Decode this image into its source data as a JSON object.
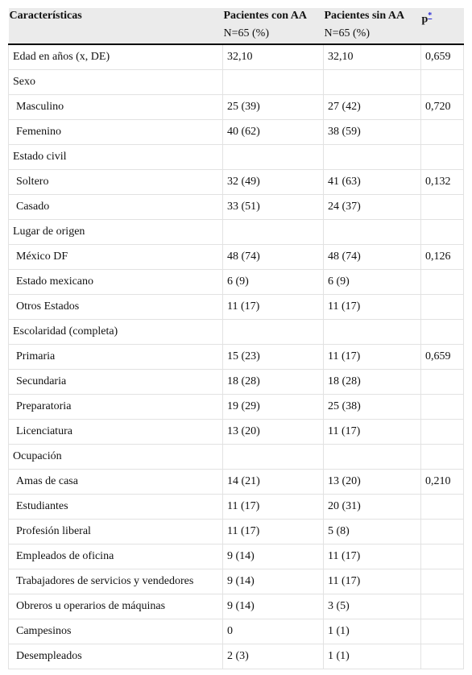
{
  "header": {
    "columns": [
      "Características",
      "Pacientes con AA",
      "Pacientes sin AA",
      "p"
    ],
    "subheaders": [
      null,
      "N=65 (%)",
      "N=65 (%)",
      null
    ],
    "footnote_mark": "*"
  },
  "table": {
    "rows": [
      [
        "Edad en años (x, DE)",
        "32,10",
        "32,10",
        "0,659"
      ]
    ],
    "groups": [
      {
        "title": "Sexo",
        "rows": [
          [
            "Masculino",
            "25 (39)",
            "27 (42)",
            "0,720"
          ],
          [
            "Femenino",
            "40 (62)",
            "38 (59)",
            null
          ]
        ]
      },
      {
        "title": "Estado civil",
        "rows": [
          [
            "Soltero",
            "32 (49)",
            "41 (63)",
            "0,132"
          ],
          [
            "Casado",
            "33 (51)",
            "24 (37)",
            null
          ]
        ]
      },
      {
        "title": "Lugar de origen",
        "rows": [
          [
            "México DF",
            "48 (74)",
            "48 (74)",
            "0,126"
          ],
          [
            "Estado mexicano",
            "6 (9)",
            "6 (9)",
            null
          ],
          [
            "Otros Estados",
            "11 (17)",
            "11 (17)",
            null
          ]
        ]
      },
      {
        "title": "Escolaridad (completa)",
        "rows": [
          [
            "Primaria",
            "15 (23)",
            "11 (17)",
            "0,659"
          ],
          [
            "Secundaria",
            "18 (28)",
            "18 (28)",
            null
          ],
          [
            "Preparatoria",
            "19 (29)",
            "25 (38)",
            null
          ],
          [
            "Licenciatura",
            "13 (20)",
            "11 (17)",
            null
          ]
        ]
      },
      {
        "title": "Ocupación",
        "rows": [
          [
            "Amas de casa",
            "14 (21)",
            "13 (20)",
            "0,210"
          ],
          [
            "Estudiantes",
            "11 (17)",
            "20 (31)",
            null
          ],
          [
            "Profesión liberal",
            "11 (17)",
            "5 (8)",
            null
          ],
          [
            "Empleados de oficina",
            "9 (14)",
            "11 (17)",
            null
          ],
          [
            "Trabajadores de servicios y vendedores",
            "9 (14)",
            "11 (17)",
            null
          ],
          [
            "Obreros u operarios de máquinas",
            "9 (14)",
            "3 (5)",
            null
          ],
          [
            "Campesinos",
            "0",
            "1 (1)",
            null
          ],
          [
            "Desempleados",
            "2 (3)",
            "1 (1)",
            null
          ]
        ]
      }
    ]
  }
}
